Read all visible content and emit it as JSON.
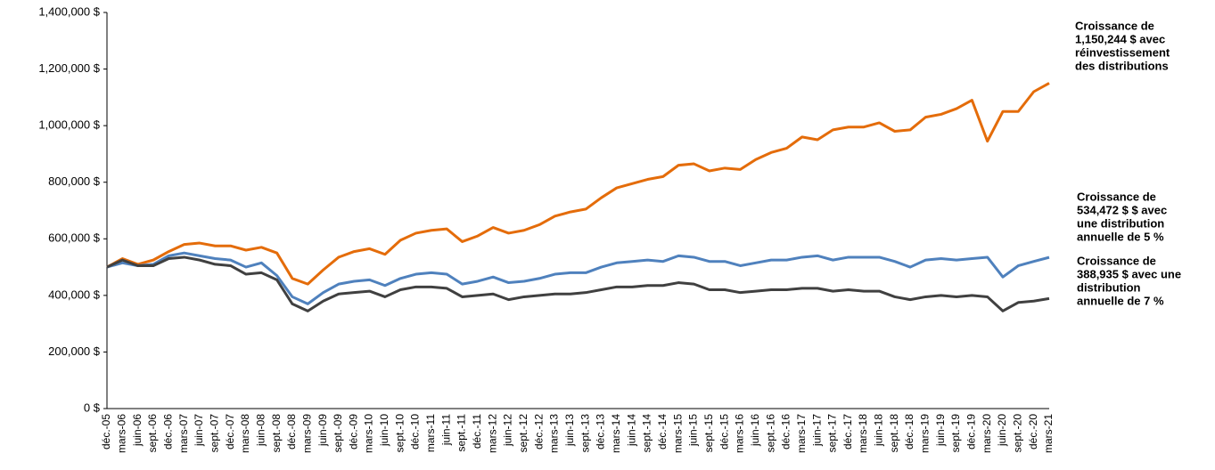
{
  "chart_data": {
    "type": "line",
    "categories": [
      "déc.-05",
      "mars-06",
      "juin-06",
      "sept.-06",
      "déc.-06",
      "mars-07",
      "juin-07",
      "sept.-07",
      "déc.-07",
      "mars-08",
      "juin-08",
      "sept.-08",
      "déc.-08",
      "mars-09",
      "juin-09",
      "sept.-09",
      "déc.-09",
      "mars-10",
      "juin-10",
      "sept.-10",
      "déc.-10",
      "mars-11",
      "juin-11",
      "sept.-11",
      "déc.-11",
      "mars-12",
      "juin-12",
      "sept.-12",
      "déc.-12",
      "mars-13",
      "juin-13",
      "sept.-13",
      "déc.-13",
      "mars-14",
      "juin-14",
      "sept.-14",
      "déc.-14",
      "mars-15",
      "juin-15",
      "sept.-15",
      "déc.-15",
      "mars-16",
      "juin-16",
      "sept.-16",
      "déc.-16",
      "mars-17",
      "juin-17",
      "sept.-17",
      "déc.-17",
      "mars-18",
      "juin-18",
      "sept.-18",
      "déc.-18",
      "mars-19",
      "juin-19",
      "sept.-19",
      "déc.-19",
      "mars-20",
      "juin-20",
      "sept.-20",
      "déc.-20",
      "mars-21"
    ],
    "series": [
      {
        "color": "#e46c0a",
        "values": [
          500000,
          530000,
          510000,
          525000,
          555000,
          580000,
          585000,
          575000,
          575000,
          560000,
          570000,
          550000,
          460000,
          440000,
          490000,
          535000,
          555000,
          565000,
          545000,
          595000,
          620000,
          630000,
          635000,
          590000,
          610000,
          640000,
          620000,
          630000,
          650000,
          680000,
          695000,
          705000,
          745000,
          780000,
          795000,
          810000,
          820000,
          860000,
          865000,
          840000,
          850000,
          845000,
          880000,
          905000,
          920000,
          960000,
          950000,
          985000,
          995000,
          995000,
          1010000,
          980000,
          985000,
          1030000,
          1040000,
          1060000,
          1090000,
          945000,
          1050000,
          1050000,
          1120000,
          1150244
        ]
      },
      {
        "color": "#4f81bd",
        "values": [
          500000,
          515000,
          505000,
          510000,
          540000,
          550000,
          540000,
          530000,
          525000,
          500000,
          515000,
          470000,
          395000,
          370000,
          410000,
          440000,
          450000,
          455000,
          435000,
          460000,
          475000,
          480000,
          475000,
          440000,
          450000,
          465000,
          445000,
          450000,
          460000,
          475000,
          480000,
          480000,
          500000,
          515000,
          520000,
          525000,
          520000,
          540000,
          535000,
          520000,
          520000,
          505000,
          515000,
          525000,
          525000,
          535000,
          540000,
          525000,
          535000,
          535000,
          535000,
          520000,
          500000,
          525000,
          530000,
          525000,
          530000,
          535000,
          465000,
          505000,
          520000,
          534472
        ]
      },
      {
        "color": "#404040",
        "values": [
          500000,
          525000,
          505000,
          505000,
          530000,
          535000,
          525000,
          510000,
          505000,
          475000,
          480000,
          455000,
          370000,
          345000,
          380000,
          405000,
          410000,
          415000,
          395000,
          420000,
          430000,
          430000,
          425000,
          395000,
          400000,
          405000,
          385000,
          395000,
          400000,
          405000,
          405000,
          410000,
          420000,
          430000,
          430000,
          435000,
          435000,
          445000,
          440000,
          420000,
          420000,
          410000,
          415000,
          420000,
          420000,
          425000,
          425000,
          415000,
          420000,
          415000,
          415000,
          395000,
          385000,
          395000,
          400000,
          395000,
          400000,
          395000,
          345000,
          375000,
          380000,
          388935
        ]
      }
    ],
    "annotations": [
      {
        "color": "#e46c0a",
        "lines": [
          "Croissance de",
          "1,150,244 $ avec",
          "réinvestissement",
          "des distributions"
        ]
      },
      {
        "color": "#4f81bd",
        "lines": [
          "Croissance de",
          "534,472 $ $  avec",
          "une distribution",
          "annuelle de 5 %"
        ]
      },
      {
        "color": "#404040",
        "lines": [
          "Croissance de",
          "388,935 $ avec une",
          "distribution",
          "annuelle de 7 %"
        ]
      }
    ],
    "ylim": [
      0,
      1400000
    ],
    "yticks": [
      {
        "value": 0,
        "label": "0 $"
      },
      {
        "value": 200000,
        "label": "200,000 $"
      },
      {
        "value": 400000,
        "label": "400,000 $"
      },
      {
        "value": 600000,
        "label": "600,000 $"
      },
      {
        "value": 800000,
        "label": "800,000 $"
      },
      {
        "value": 1000000,
        "label": "1,000,000 $"
      },
      {
        "value": 1200000,
        "label": "1,200,000 $"
      },
      {
        "value": 1400000,
        "label": "1,400,000 $"
      }
    ],
    "grid": false
  }
}
